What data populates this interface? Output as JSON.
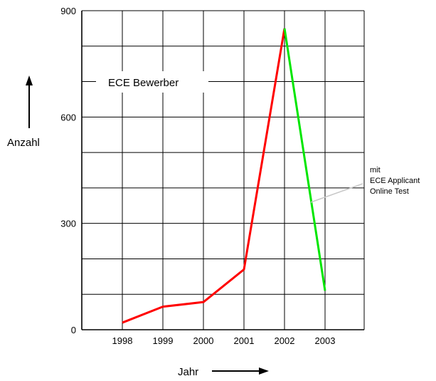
{
  "chart_data": {
    "type": "line",
    "title": "ECE Bewerber",
    "xlabel": "Jahr",
    "ylabel": "Anzahl",
    "x": [
      "1998",
      "1999",
      "2000",
      "2001",
      "2002",
      "2003"
    ],
    "ylim": [
      0,
      900
    ],
    "yticks": [
      "0",
      "300",
      "600",
      "900"
    ],
    "grid": true,
    "series": [
      {
        "values": [
          20,
          65,
          78,
          170,
          850,
          null
        ],
        "color": "#ff0000"
      },
      {
        "values": [
          null,
          null,
          null,
          null,
          850,
          110
        ],
        "color": "#00e600"
      }
    ],
    "annotation": {
      "lines": [
        "mit",
        "ECE Applicant",
        "Online Test"
      ],
      "color": "#c8c8c8"
    }
  }
}
